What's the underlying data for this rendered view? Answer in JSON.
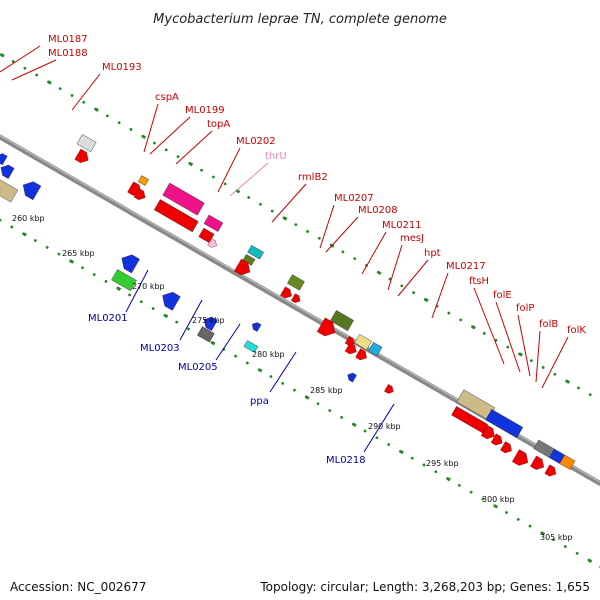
{
  "title": "Mycobacterium leprae TN, complete genome",
  "footer": {
    "accession": "Accession: NC_002677",
    "summary": "Topology: circular; Length: 3,268,203 bp; Genes: 1,655"
  },
  "colors": {
    "backbone": "#888888",
    "forward_label": "#cc0000",
    "reverse_label": "#0000aa",
    "pseudo_label": "#ee88bb",
    "dots": "#228B22"
  },
  "kbp_ticks": [
    "260 kbp",
    "265 kbp",
    "270 kbp",
    "275 kbp",
    "280 kbp",
    "285 kbp",
    "290 kbp",
    "295 kbp",
    "300 kbp",
    "305 kbp"
  ],
  "forward_genes": [
    {
      "name": "ML0187",
      "color": "#cc0000"
    },
    {
      "name": "ML0188",
      "color": "#cc0000"
    },
    {
      "name": "ML0193",
      "color": "#cc0000"
    },
    {
      "name": "cspA",
      "color": "#cc0000"
    },
    {
      "name": "ML0199",
      "color": "#cc0000"
    },
    {
      "name": "topA",
      "color": "#cc0000"
    },
    {
      "name": "ML0202",
      "color": "#cc0000"
    },
    {
      "name": "thrU",
      "color": "#ee88bb"
    },
    {
      "name": "rmlB2",
      "color": "#cc0000"
    },
    {
      "name": "ML0207",
      "color": "#cc0000"
    },
    {
      "name": "ML0208",
      "color": "#cc0000"
    },
    {
      "name": "ML0211",
      "color": "#cc0000"
    },
    {
      "name": "mesJ",
      "color": "#cc0000"
    },
    {
      "name": "hpt",
      "color": "#cc0000"
    },
    {
      "name": "ML0217",
      "color": "#cc0000"
    },
    {
      "name": "ftsH",
      "color": "#cc0000"
    },
    {
      "name": "folE",
      "color": "#cc0000"
    },
    {
      "name": "folP",
      "color": "#cc0000"
    },
    {
      "name": "folB",
      "color": "#cc0000"
    },
    {
      "name": "folK",
      "color": "#cc0000"
    }
  ],
  "reverse_genes": [
    {
      "name": "ML0201",
      "color": "#0000aa"
    },
    {
      "name": "ML0203",
      "color": "#0000aa"
    },
    {
      "name": "ML0205",
      "color": "#0000aa"
    },
    {
      "name": "ppa",
      "color": "#0000aa"
    },
    {
      "name": "ML0218",
      "color": "#0000aa"
    }
  ]
}
